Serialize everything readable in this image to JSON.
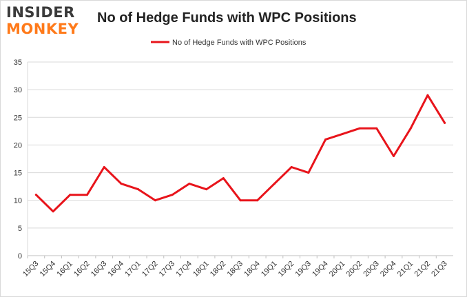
{
  "logo": {
    "line1": "INSIDER",
    "line2": "MONKEY"
  },
  "chart_data": {
    "type": "line",
    "title": "No of Hedge Funds with WPC Positions",
    "xlabel": "",
    "ylabel": "",
    "categories": [
      "15Q3",
      "15Q4",
      "16Q1",
      "16Q2",
      "16Q3",
      "16Q4",
      "17Q1",
      "17Q2",
      "17Q3",
      "17Q4",
      "18Q1",
      "18Q2",
      "18Q3",
      "18Q4",
      "19Q1",
      "19Q2",
      "19Q3",
      "19Q4",
      "20Q1",
      "20Q2",
      "20Q3",
      "20Q4",
      "21Q1",
      "21Q2",
      "21Q3"
    ],
    "series": [
      {
        "name": "No of Hedge Funds with WPC Positions",
        "color": "#e8141b",
        "values": [
          11,
          8,
          11,
          11,
          16,
          13,
          12,
          10,
          11,
          13,
          12,
          14,
          10,
          10,
          13,
          16,
          15,
          21,
          22,
          23,
          23,
          18,
          23,
          29,
          24
        ]
      }
    ],
    "ylim": [
      0,
      35
    ],
    "yticks": [
      0,
      5,
      10,
      15,
      20,
      25,
      30,
      35
    ],
    "grid": true,
    "legend": "top-center"
  }
}
